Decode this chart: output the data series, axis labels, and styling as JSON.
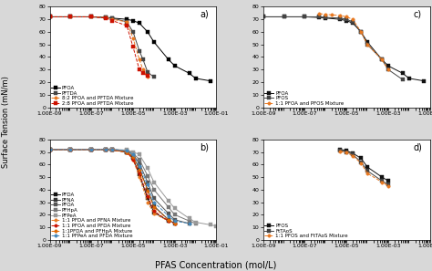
{
  "xlabel": "PFAS Concentration (mol/L)",
  "ylabel": "Surface Tension (mN/m)",
  "ylim": [
    0,
    80
  ],
  "bg_color": "#e8e8e8",
  "panel_a": {
    "series": [
      {
        "label": "PFOA",
        "color": "#000000",
        "marker": "s",
        "linestyle": "-",
        "markersize": 2.5,
        "x": [
          1e-09,
          1e-08,
          1e-07,
          5e-07,
          1e-06,
          5e-06,
          1e-05,
          2e-05,
          5e-05,
          0.0001,
          0.0005,
          0.001,
          0.005,
          0.01,
          0.05
        ],
        "y": [
          72,
          72,
          72,
          71.5,
          71,
          70,
          69,
          67,
          60,
          52,
          38,
          33,
          27,
          23,
          21
        ]
      },
      {
        "label": "PFTDA",
        "color": "#444444",
        "marker": "s",
        "linestyle": "-",
        "markersize": 2.5,
        "x": [
          1e-09,
          1e-08,
          1e-07,
          5e-07,
          1e-06,
          5e-06,
          1e-05,
          2e-05,
          3e-05,
          5e-05,
          0.0001
        ],
        "y": [
          72,
          72,
          72,
          71.5,
          71,
          68,
          60,
          45,
          38,
          28,
          24
        ]
      },
      {
        "label": "8:2 PFOA and PFTDA Mixture",
        "color": "#E87820",
        "marker": "o",
        "linestyle": "--",
        "markersize": 2.5,
        "x": [
          1e-09,
          1e-08,
          1e-07,
          5e-07,
          1e-06,
          5e-06,
          1e-05,
          2e-05,
          3e-05,
          5e-05
        ],
        "y": [
          72,
          72,
          72,
          71.5,
          70,
          68,
          55,
          38,
          30,
          24
        ]
      },
      {
        "label": "2:8 PFOA and PFTDA Mixture",
        "color": "#CC1100",
        "marker": "s",
        "linestyle": "--",
        "markersize": 2.5,
        "x": [
          1e-09,
          1e-08,
          1e-07,
          5e-07,
          1e-06,
          5e-06,
          1e-05,
          2e-05,
          3e-05,
          5e-05
        ],
        "y": [
          72,
          72,
          72,
          71,
          69,
          65,
          48,
          30,
          27,
          25
        ]
      }
    ]
  },
  "panel_b": {
    "series": [
      {
        "label": "PFDA",
        "color": "#111111",
        "marker": "s",
        "linestyle": "-",
        "markersize": 2.5,
        "x": [
          1e-09,
          1e-08,
          1e-07,
          5e-07,
          1e-06,
          5e-06,
          1e-05,
          2e-05,
          5e-05,
          0.0001,
          0.0005
        ],
        "y": [
          72,
          72,
          72,
          72,
          71.5,
          70,
          65,
          52,
          33,
          22,
          15
        ]
      },
      {
        "label": "PFNA",
        "color": "#333333",
        "marker": "s",
        "linestyle": "-",
        "markersize": 2.5,
        "x": [
          1e-09,
          1e-08,
          1e-07,
          5e-07,
          1e-06,
          5e-06,
          1e-05,
          2e-05,
          5e-05,
          0.0001,
          0.0005,
          0.001
        ],
        "y": [
          72,
          72,
          72,
          72,
          71.5,
          70,
          66,
          57,
          40,
          27,
          16,
          13
        ]
      },
      {
        "label": "PFOA",
        "color": "#555555",
        "marker": "s",
        "linestyle": "-",
        "markersize": 2.5,
        "x": [
          1e-09,
          1e-08,
          1e-07,
          5e-07,
          1e-06,
          5e-06,
          1e-05,
          2e-05,
          5e-05,
          0.0001,
          0.0005,
          0.001,
          0.005
        ],
        "y": [
          72,
          72,
          72,
          72,
          71.5,
          70.5,
          68,
          61,
          46,
          33,
          21,
          16,
          13
        ]
      },
      {
        "label": "PFHpA",
        "color": "#777777",
        "marker": "s",
        "linestyle": "-",
        "markersize": 2.5,
        "x": [
          1e-09,
          1e-08,
          1e-07,
          5e-07,
          1e-06,
          5e-06,
          1e-05,
          2e-05,
          5e-05,
          0.0001,
          0.0005,
          0.001,
          0.005,
          0.01
        ],
        "y": [
          72,
          72,
          72,
          72,
          72,
          71,
          69,
          64,
          51,
          40,
          26,
          20,
          15,
          13
        ]
      },
      {
        "label": "PFPeA",
        "color": "#999999",
        "marker": "s",
        "linestyle": "-",
        "markersize": 2.5,
        "x": [
          1e-09,
          1e-08,
          1e-07,
          5e-07,
          1e-06,
          5e-06,
          1e-05,
          2e-05,
          5e-05,
          0.0001,
          0.0005,
          0.001,
          0.005,
          0.01,
          0.05,
          0.1
        ],
        "y": [
          72,
          72,
          72,
          72,
          72,
          71.5,
          70,
          68,
          57,
          46,
          31,
          25,
          17,
          14,
          12,
          11
        ]
      },
      {
        "label": "1:1 PFDA and PFNA Mixture",
        "color": "#E87820",
        "marker": "o",
        "linestyle": "--",
        "markersize": 2.5,
        "x": [
          1e-09,
          1e-08,
          1e-07,
          5e-07,
          1e-06,
          5e-06,
          1e-05,
          2e-05,
          5e-05,
          0.0001,
          0.0005
        ],
        "y": [
          72,
          72,
          72,
          72,
          71.5,
          70,
          64,
          50,
          30,
          21,
          15
        ]
      },
      {
        "label": "1:1 PFOA and PFDA Mixture",
        "color": "#CC1100",
        "marker": "o",
        "linestyle": "--",
        "markersize": 2.5,
        "x": [
          1e-09,
          1e-08,
          1e-07,
          5e-07,
          1e-06,
          5e-06,
          1e-05,
          2e-05,
          5e-05,
          0.0001,
          0.0005,
          0.001
        ],
        "y": [
          72,
          72,
          72,
          72,
          71.5,
          70,
          64,
          53,
          35,
          23,
          15,
          13
        ]
      },
      {
        "label": "1:1PFDA and PFHpA Mixture",
        "color": "#DD6600",
        "marker": "o",
        "linestyle": "--",
        "markersize": 2.5,
        "x": [
          1e-09,
          1e-08,
          1e-07,
          5e-07,
          1e-06,
          5e-06,
          1e-05,
          2e-05,
          5e-05,
          0.0001,
          0.0005,
          0.001
        ],
        "y": [
          72,
          72,
          72,
          72,
          71.5,
          70,
          66,
          56,
          39,
          26,
          16,
          13
        ]
      },
      {
        "label": "1:1 PFPeA and PFDA Mixture",
        "color": "#4488BB",
        "marker": "o",
        "linestyle": "--",
        "markersize": 2.5,
        "x": [
          1e-09,
          1e-08,
          1e-07,
          5e-07,
          1e-06,
          5e-06,
          1e-05,
          2e-05,
          5e-05,
          0.0001,
          0.0005,
          0.001,
          0.005
        ],
        "y": [
          72,
          72,
          72,
          72,
          72,
          71,
          68,
          59,
          44,
          30,
          19,
          15,
          13
        ]
      }
    ]
  },
  "panel_c": {
    "series": [
      {
        "label": "PFOA",
        "color": "#111111",
        "marker": "s",
        "linestyle": "-",
        "markersize": 2.5,
        "x": [
          1e-09,
          1e-08,
          1e-07,
          5e-07,
          1e-06,
          5e-06,
          1e-05,
          2e-05,
          5e-05,
          0.0001,
          0.0005,
          0.001,
          0.005,
          0.01,
          0.05
        ],
        "y": [
          72,
          72,
          72,
          71.5,
          71,
          70,
          69,
          67,
          60,
          52,
          38,
          33,
          27,
          23,
          21
        ]
      },
      {
        "label": "PFOS",
        "color": "#444444",
        "marker": "s",
        "linestyle": "-",
        "markersize": 2.5,
        "x": [
          1e-09,
          1e-08,
          1e-07,
          5e-07,
          1e-06,
          5e-06,
          1e-05,
          2e-05,
          5e-05,
          0.0001,
          0.0005,
          0.001,
          0.005
        ],
        "y": [
          72,
          72,
          72,
          72,
          71.5,
          71,
          70,
          68,
          60,
          50,
          38,
          30,
          22
        ]
      },
      {
        "label": "1:1 PFOA and PFOS Mixture",
        "color": "#E87820",
        "marker": "o",
        "linestyle": "--",
        "markersize": 2.5,
        "x": [
          5e-07,
          1e-06,
          2e-06,
          5e-06,
          1e-05,
          2e-05,
          5e-05,
          0.0001,
          0.0005,
          0.001
        ],
        "y": [
          74.5,
          74,
          73.5,
          73,
          72,
          70,
          60,
          50,
          38,
          30
        ]
      }
    ]
  },
  "panel_d": {
    "series": [
      {
        "label": "PFOS",
        "color": "#111111",
        "marker": "s",
        "linestyle": "-",
        "markersize": 2.5,
        "x": [
          5e-06,
          1e-05,
          2e-05,
          5e-05,
          0.0001,
          0.0005,
          0.001
        ],
        "y": [
          72,
          71,
          69,
          65,
          58,
          50,
          47
        ]
      },
      {
        "label": "FtTAoS",
        "color": "#444444",
        "marker": "s",
        "linestyle": "-",
        "markersize": 2.5,
        "x": [
          5e-06,
          1e-05,
          2e-05,
          5e-05,
          0.0001,
          0.0005,
          0.001
        ],
        "y": [
          71,
          70,
          68,
          62,
          55,
          47,
          44
        ]
      },
      {
        "label": "1:1 PFOS and FtTAoS Mixture",
        "color": "#E87820",
        "marker": "o",
        "linestyle": "--",
        "markersize": 2.5,
        "x": [
          5e-06,
          1e-05,
          2e-05,
          5e-05,
          0.0001,
          0.0005,
          0.001
        ],
        "y": [
          70.5,
          69.5,
          67,
          61,
          53,
          46,
          43
        ]
      }
    ]
  }
}
